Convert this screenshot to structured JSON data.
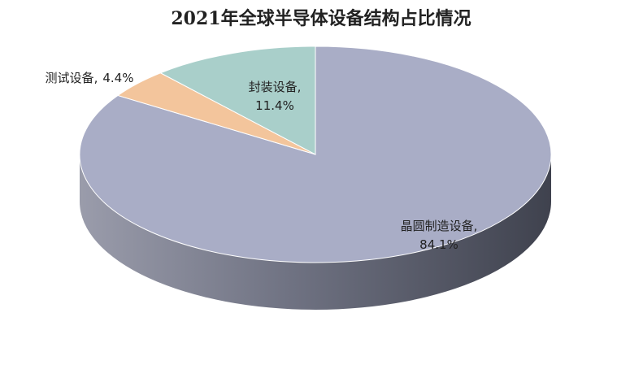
{
  "chart_data": {
    "type": "pie",
    "title": "2021年全球半导体设备结构占比情况",
    "categories": [
      "晶圆制造设备",
      "测试设备",
      "封装设备"
    ],
    "values": [
      84.1,
      4.4,
      11.4
    ],
    "value_labels": [
      "84.1%",
      "4.4%",
      "11.4%"
    ],
    "label_separator": ",",
    "colors": [
      "#a9adc6",
      "#f3c59c",
      "#a9cfca"
    ],
    "three_d": true
  }
}
